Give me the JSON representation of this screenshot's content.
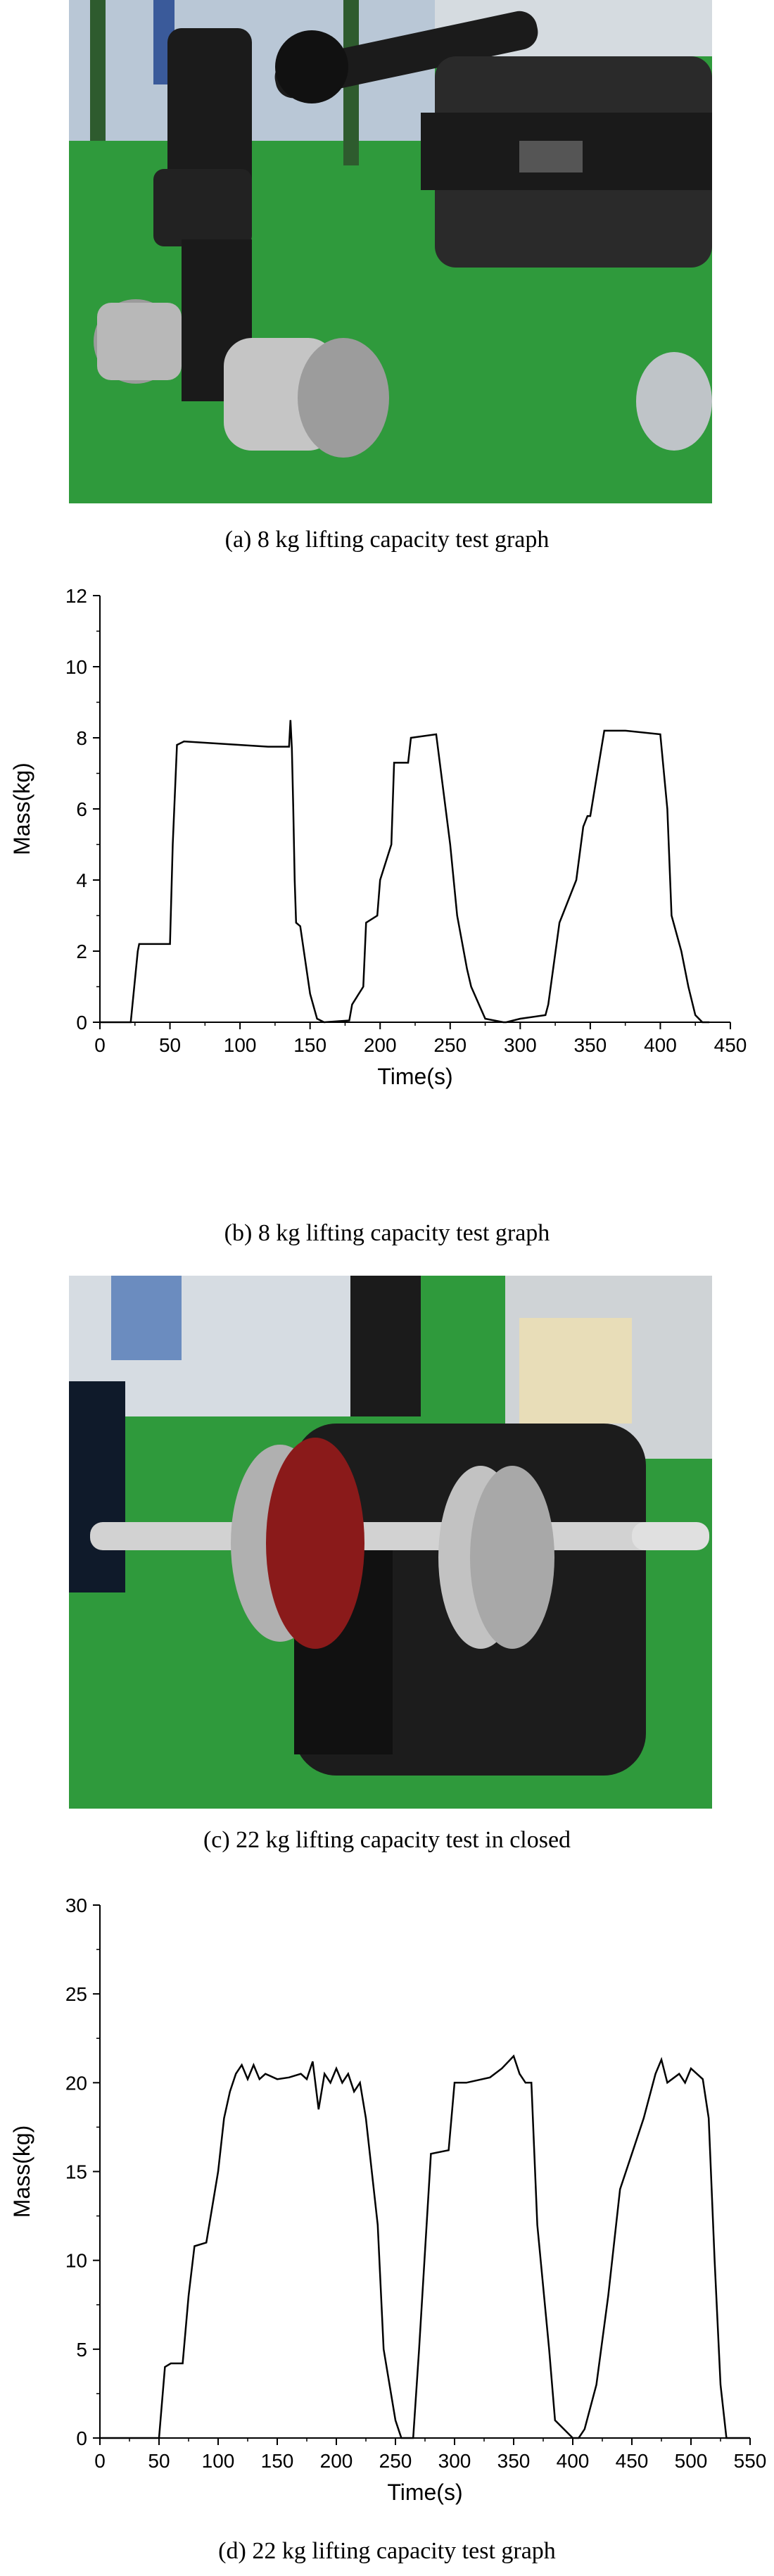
{
  "captions": {
    "a": "(a) 8 kg lifting capacity test graph",
    "b": "(b) 8 kg lifting capacity test graph",
    "c": "(c) 22 kg lifting capacity test in closed",
    "d": "(d) 22 kg lifting capacity test graph"
  },
  "colors": {
    "floor_green": "#2f9a3c",
    "wall": "#d8dde2",
    "robot_black": "#1b1b1b",
    "metal": "#c8c8c8",
    "line": "#000000"
  },
  "chart_data": [
    {
      "type": "line",
      "title": "",
      "xlabel": "Time(s)",
      "ylabel": "Mass(kg)",
      "xlim": [
        0,
        450
      ],
      "ylim": [
        0,
        12
      ],
      "xticks": [
        0,
        50,
        100,
        150,
        200,
        250,
        300,
        350,
        400,
        450
      ],
      "yticks": [
        0,
        2,
        4,
        6,
        8,
        10,
        12
      ],
      "grid": false,
      "x": [
        0,
        22,
        27,
        28,
        50,
        52,
        55,
        60,
        100,
        120,
        135,
        136,
        137,
        138,
        139,
        140,
        143,
        150,
        155,
        160,
        178,
        180,
        188,
        190,
        198,
        200,
        208,
        210,
        220,
        222,
        240,
        250,
        255,
        262,
        265,
        275,
        288,
        290,
        300,
        318,
        320,
        328,
        330,
        340,
        345,
        348,
        350,
        355,
        360,
        375,
        400,
        405,
        408,
        415,
        420,
        425,
        430,
        435
      ],
      "y": [
        0,
        0,
        2.0,
        2.2,
        2.2,
        5.0,
        7.8,
        7.9,
        7.8,
        7.75,
        7.75,
        8.5,
        7.7,
        6.0,
        4.0,
        2.8,
        2.7,
        0.8,
        0.1,
        0,
        0.05,
        0.5,
        1.0,
        2.8,
        3.0,
        4.0,
        5.0,
        7.3,
        7.3,
        8.0,
        8.1,
        5.0,
        3.0,
        1.5,
        1.0,
        0.1,
        0,
        0,
        0.1,
        0.2,
        0.5,
        2.8,
        3.0,
        4.0,
        5.5,
        5.8,
        5.8,
        7.0,
        8.2,
        8.2,
        8.1,
        6.0,
        3.0,
        2.0,
        1.0,
        0.2,
        0,
        0
      ]
    },
    {
      "type": "line",
      "title": "",
      "xlabel": "Time(s)",
      "ylabel": "Mass(kg)",
      "xlim": [
        0,
        550
      ],
      "ylim": [
        0,
        30
      ],
      "xticks": [
        0,
        50,
        100,
        150,
        200,
        250,
        300,
        350,
        400,
        450,
        500,
        550
      ],
      "yticks": [
        0,
        5,
        10,
        15,
        20,
        25,
        30
      ],
      "grid": false,
      "x": [
        0,
        50,
        55,
        60,
        70,
        75,
        80,
        90,
        100,
        105,
        110,
        115,
        120,
        125,
        130,
        135,
        140,
        150,
        160,
        170,
        175,
        180,
        185,
        190,
        195,
        200,
        205,
        210,
        215,
        220,
        225,
        235,
        240,
        245,
        250,
        255,
        265,
        270,
        280,
        295,
        300,
        310,
        330,
        340,
        350,
        355,
        360,
        365,
        370,
        380,
        385,
        400,
        405,
        410,
        420,
        430,
        435,
        440,
        450,
        460,
        470,
        475,
        480,
        490,
        495,
        500,
        510,
        515,
        520,
        525,
        530,
        540,
        550
      ],
      "y": [
        0,
        0,
        4.0,
        4.2,
        4.2,
        8.0,
        10.8,
        11.0,
        15.0,
        18.0,
        19.5,
        20.5,
        21.0,
        20.2,
        21.0,
        20.2,
        20.5,
        20.2,
        20.3,
        20.5,
        20.2,
        21.2,
        18.5,
        20.5,
        20.0,
        20.8,
        20.0,
        20.5,
        19.5,
        20.0,
        18.0,
        12.0,
        5.0,
        3.0,
        1.0,
        0,
        0,
        5.0,
        16.0,
        16.2,
        20.0,
        20.0,
        20.3,
        20.8,
        21.5,
        20.5,
        20.0,
        20.0,
        12.0,
        5.0,
        1.0,
        0,
        0,
        0.5,
        3.0,
        8.0,
        11.0,
        14.0,
        16.0,
        18.0,
        20.5,
        21.3,
        20.0,
        20.5,
        20.0,
        20.8,
        20.2,
        18.0,
        10.0,
        3.0,
        0,
        0,
        0
      ]
    }
  ]
}
